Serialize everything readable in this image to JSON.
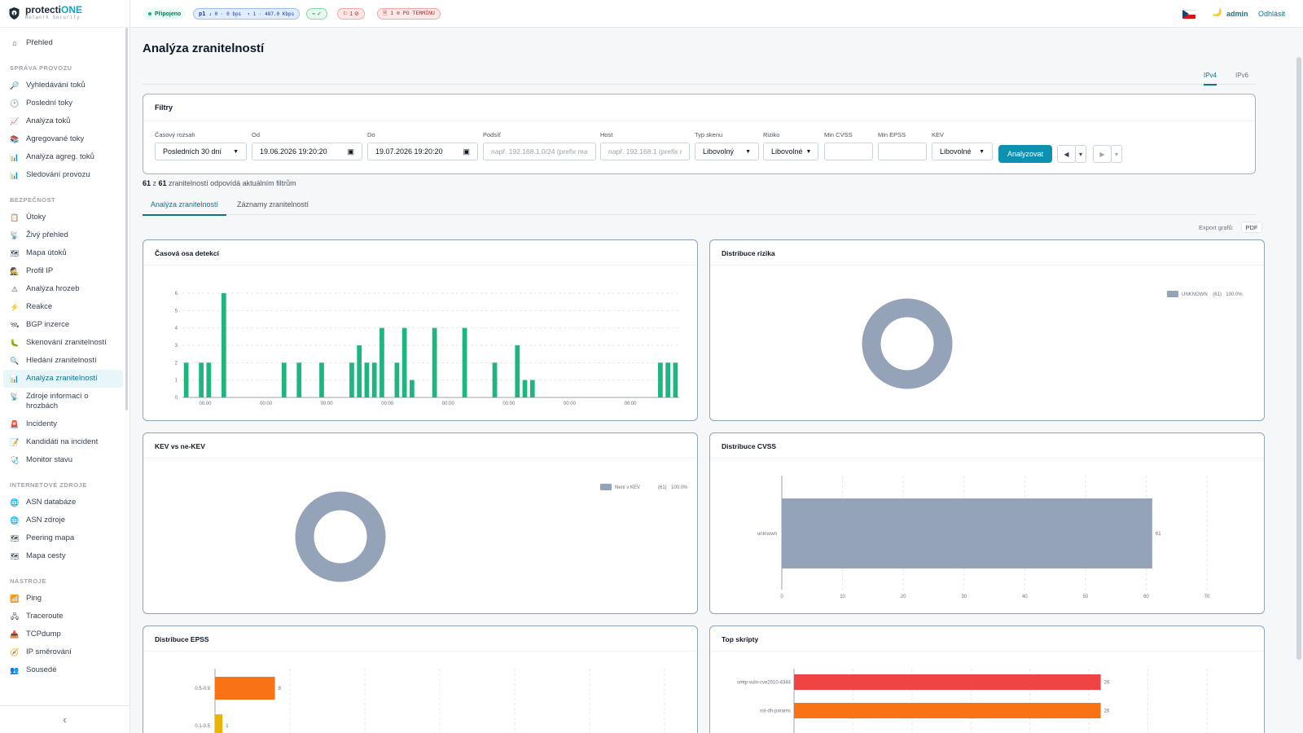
{
  "brand": {
    "name_a": "protecti",
    "name_b": "ONE",
    "subtitle": "Network Security"
  },
  "sidebar": {
    "top": [
      {
        "icon": "⌂",
        "label": "Přehled"
      }
    ],
    "groups": [
      {
        "title": "SPRÁVA PROVOZU",
        "items": [
          {
            "icon": "🔎",
            "label": "Vyhledávání toků"
          },
          {
            "icon": "🕑",
            "label": "Poslední toky"
          },
          {
            "icon": "📈",
            "label": "Analýza toků"
          },
          {
            "icon": "📚",
            "label": "Agregované toky"
          },
          {
            "icon": "📊",
            "label": "Analýza agreg. toků"
          },
          {
            "icon": "📊",
            "label": "Sledování provozu"
          }
        ]
      },
      {
        "title": "BEZPEČNOST",
        "items": [
          {
            "icon": "📋",
            "label": "Útoky"
          },
          {
            "icon": "📡",
            "label": "Živý přehled"
          },
          {
            "icon": "🗺",
            "label": "Mapa útoků"
          },
          {
            "icon": "🕵",
            "label": "Profil IP"
          },
          {
            "icon": "⚠",
            "label": "Analýza hrozeb"
          },
          {
            "icon": "⚡",
            "label": "Reakce"
          },
          {
            "icon": "🛰",
            "label": "BGP inzerce"
          },
          {
            "icon": "🐛",
            "label": "Skenování zranitelností"
          },
          {
            "icon": "🔍",
            "label": "Hledání zranitelností"
          },
          {
            "icon": "📊",
            "label": "Analýza zranitelností",
            "active": true
          },
          {
            "icon": "📡",
            "label": "Zdroje informací o hrozbách"
          },
          {
            "icon": "🚨",
            "label": "Incidenty"
          },
          {
            "icon": "📝",
            "label": "Kandidáti na incident"
          },
          {
            "icon": "🩺",
            "label": "Monitor stavu"
          }
        ]
      },
      {
        "title": "INTERNETOVÉ ZDROJE",
        "items": [
          {
            "icon": "🌐",
            "label": "ASN databáze"
          },
          {
            "icon": "🌐",
            "label": "ASN zdroje"
          },
          {
            "icon": "🗺",
            "label": "Peering mapa"
          },
          {
            "icon": "🗺",
            "label": "Mapa cesty"
          }
        ]
      },
      {
        "title": "NÁSTROJE",
        "items": [
          {
            "icon": "📶",
            "label": "Ping"
          },
          {
            "icon": "🖧",
            "label": "Traceroute"
          },
          {
            "icon": "📥",
            "label": "TCPdump"
          },
          {
            "icon": "🧭",
            "label": "IP směrování"
          },
          {
            "icon": "👥",
            "label": "Sousedé"
          }
        ]
      }
    ],
    "collapse_icon": "‹"
  },
  "topbar": {
    "status": "Připojeno",
    "traffic": {
      "probe": "p1",
      "down": "↓ 0 · 0 bps",
      "up": "↑ 1 · 487.0 Kbps"
    },
    "pulse": "⌁ ✓",
    "flags": "⚐ 1 ⊘",
    "overdue": "🗎 1 ⊘ PO TERMÍNU",
    "user": "admin",
    "logout": "Odhlásit"
  },
  "page": {
    "title": "Analýza zranitelností",
    "ip_tabs": [
      "IPv4",
      "IPv6"
    ]
  },
  "filters": {
    "title": "Filtry",
    "time_range": {
      "label": "Časový rozsah",
      "value": "Posledních 30 dní"
    },
    "from": {
      "label": "Od",
      "value": "19.06.2026 19:20:20"
    },
    "to": {
      "label": "Do",
      "value": "19.07.2026 19:20:20"
    },
    "subnet": {
      "label": "Podsíť",
      "placeholder": "např. 192.168.1.0/24 (prefix ma"
    },
    "host": {
      "label": "Host",
      "placeholder": "např. 192.168.1 (prefix r"
    },
    "scan_type": {
      "label": "Typ skenu",
      "value": "Libovolný"
    },
    "risk": {
      "label": "Riziko",
      "value": "Libovolné"
    },
    "min_cvss": {
      "label": "Min CVSS",
      "value": ""
    },
    "min_epss": {
      "label": "Min EPSS",
      "value": ""
    },
    "kev": {
      "label": "KEV",
      "value": "Libovolné"
    },
    "analyze": "Analyzovat",
    "prev": "◀",
    "next": "▶",
    "caret": "▾"
  },
  "summary": {
    "count": "61",
    "mid": " z ",
    "total": "61",
    "text": " zranitelností odpovídá aktuálním filtrům"
  },
  "sub_tabs": [
    "Analýza zranitelností",
    "Záznamy zranitelností"
  ],
  "export": {
    "label": "Export grafů:",
    "pdf": "PDF"
  },
  "colors": {
    "accent": "#0e91b0",
    "green": "#1fb57f",
    "slate": "#94a3b8",
    "orange": "#f97316",
    "red": "#ef4444",
    "yellow": "#eab308"
  },
  "chart_data": [
    {
      "type": "bar",
      "title": "Časová osa detekcí",
      "y_ticks": [
        0,
        1,
        2,
        3,
        4,
        5,
        6
      ],
      "ylim": [
        0,
        6
      ],
      "x_tick_labels": [
        "00:00",
        "00:00",
        "00:00",
        "00:00",
        "00:00",
        "00:00",
        "00:00",
        "00:00"
      ],
      "values": [
        2,
        0,
        2,
        2,
        0,
        6,
        0,
        0,
        0,
        0,
        0,
        0,
        0,
        2,
        0,
        2,
        0,
        0,
        2,
        0,
        0,
        0,
        2,
        3,
        2,
        2,
        4,
        0,
        2,
        4,
        1,
        0,
        0,
        4,
        0,
        0,
        0,
        4,
        0,
        0,
        0,
        2,
        0,
        0,
        3,
        1,
        1,
        0,
        0,
        0,
        0,
        0,
        0,
        0,
        0,
        0,
        0,
        0,
        0,
        0,
        0,
        0,
        0,
        2,
        2,
        2
      ],
      "grid": true
    },
    {
      "type": "pie",
      "title": "Distribuce rizika",
      "slices": [
        {
          "label": "UNKNOWN",
          "count": 61,
          "percent": "100.0%"
        }
      ]
    },
    {
      "type": "pie",
      "title": "KEV vs ne-KEV",
      "slices": [
        {
          "label": "Není v KEV",
          "count": 61,
          "percent": "100.0%"
        }
      ]
    },
    {
      "type": "bar",
      "orientation": "horizontal",
      "title": "Distribuce CVSS",
      "categories": [
        "unknown"
      ],
      "values": [
        61
      ],
      "x_ticks": [
        0,
        10,
        20,
        30,
        40,
        50,
        60,
        70
      ],
      "xlim": [
        0,
        70
      ]
    },
    {
      "type": "bar",
      "orientation": "horizontal",
      "title": "Distribuce EPSS",
      "categories": [
        "0.5-0.9",
        "0.1-0.5"
      ],
      "values": [
        8,
        1
      ],
      "xlim": [
        0,
        60
      ]
    },
    {
      "type": "bar",
      "orientation": "horizontal",
      "title": "Top skripty",
      "categories": [
        "smtp-vuln-cve2010-4344",
        "ssl-dh-params"
      ],
      "values": [
        26,
        26
      ],
      "xlim": [
        0,
        35
      ]
    }
  ]
}
